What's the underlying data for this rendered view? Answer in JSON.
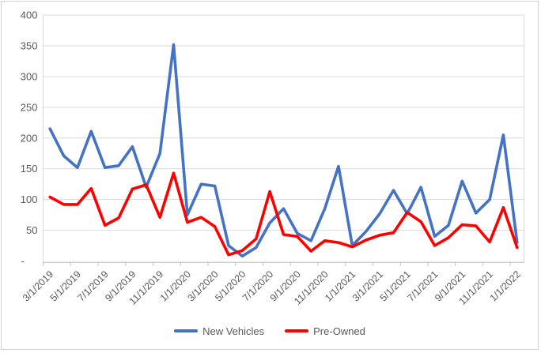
{
  "chart_data": {
    "type": "line",
    "title": "",
    "n_points": 35,
    "x_frequency": "monthly, labels shown every 2nd month",
    "x_tick_labels": [
      "3/1/2019",
      "5/1/2019",
      "7/1/2019",
      "9/1/2019",
      "11/1/2019",
      "1/1/2020",
      "3/1/2020",
      "5/1/2020",
      "7/1/2020",
      "9/1/2020",
      "11/1/2020",
      "1/1/2021",
      "3/1/2021",
      "5/1/2021",
      "7/1/2021",
      "9/1/2021",
      "11/1/2021",
      "1/1/2022"
    ],
    "y_tick_labels": [
      "-",
      "50",
      "100",
      "150",
      "200",
      "250",
      "300",
      "350",
      "400"
    ],
    "ylim": [
      0,
      400
    ],
    "y_step": 50,
    "grid": true,
    "legend_position": "bottom-center",
    "series": [
      {
        "name": "New Vehicles",
        "color": "#4472C4",
        "values": [
          215,
          171,
          152,
          211,
          152,
          155,
          186,
          120,
          175,
          352,
          75,
          125,
          122,
          25,
          8,
          22,
          62,
          85,
          45,
          33,
          85,
          154,
          25,
          48,
          77,
          115,
          77,
          120,
          40,
          58,
          130,
          78,
          100,
          205,
          30
        ]
      },
      {
        "name": "Pre-Owned",
        "color": "#FF0000",
        "values": [
          104,
          92,
          92,
          118,
          58,
          70,
          117,
          124,
          71,
          143,
          63,
          71,
          56,
          10,
          17,
          36,
          113,
          43,
          40,
          16,
          33,
          30,
          23,
          34,
          42,
          46,
          79,
          64,
          25,
          38,
          59,
          57,
          31,
          87,
          22
        ]
      }
    ],
    "colors": {
      "axis_text": "#595959",
      "gridline": "#d9d9d9",
      "axis_line": "#bfbfbf",
      "background": "#ffffff",
      "frame_border": "#d0d0d0"
    }
  }
}
